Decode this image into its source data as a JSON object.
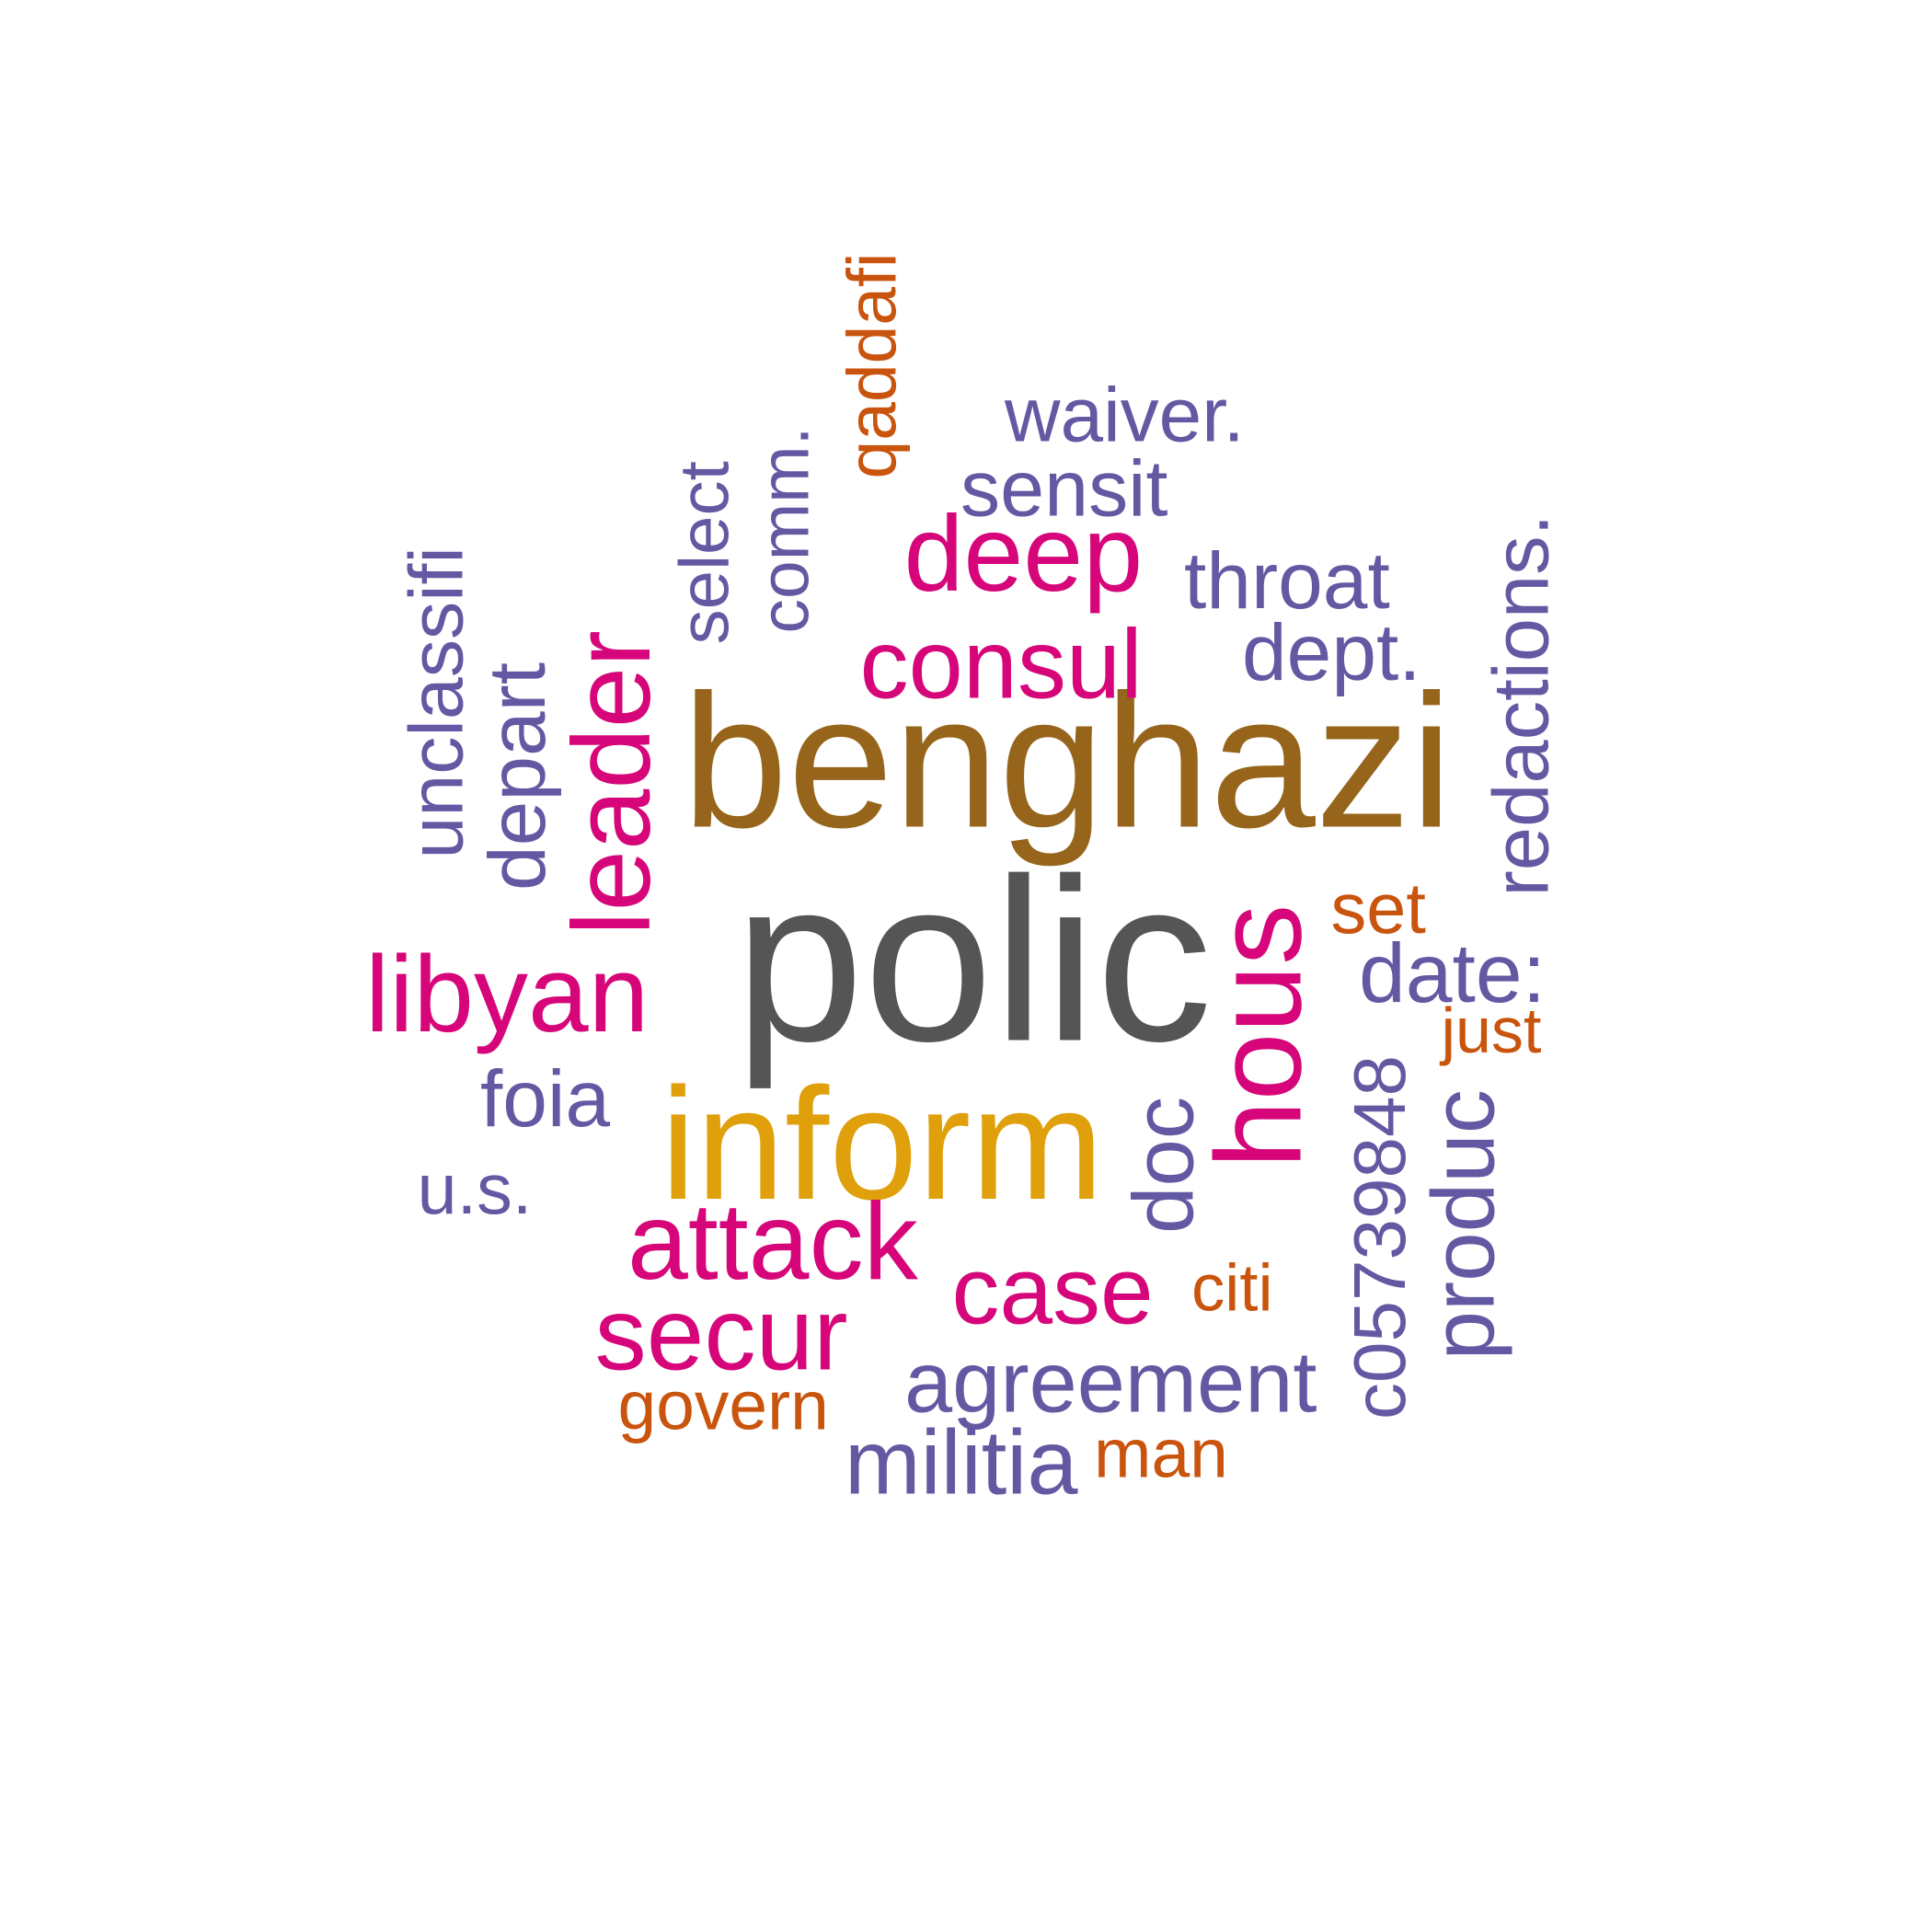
{
  "palette": {
    "brown": "#96651B",
    "gray": "#555555",
    "gold": "#E0A00C",
    "magenta": "#D6067A",
    "purple": "#6359A3",
    "orange": "#C9540D"
  },
  "words": [
    {
      "text": "benghazi",
      "color": "#96651B",
      "vertical": false
    },
    {
      "text": "polic",
      "color": "#555555",
      "vertical": false
    },
    {
      "text": "inform",
      "color": "#E0A00C",
      "vertical": false
    },
    {
      "text": "hous",
      "color": "#D6067A",
      "vertical": true
    },
    {
      "text": "libyan",
      "color": "#D6067A",
      "vertical": false
    },
    {
      "text": "leader",
      "color": "#D6067A",
      "vertical": true
    },
    {
      "text": "consul",
      "color": "#D6067A",
      "vertical": false
    },
    {
      "text": "deep",
      "color": "#D6067A",
      "vertical": false
    },
    {
      "text": "attack",
      "color": "#D6067A",
      "vertical": false
    },
    {
      "text": "case",
      "color": "#D6067A",
      "vertical": false
    },
    {
      "text": "secur",
      "color": "#D6067A",
      "vertical": false
    },
    {
      "text": "unclassifi",
      "color": "#6359A3",
      "vertical": true
    },
    {
      "text": "depart",
      "color": "#6359A3",
      "vertical": true
    },
    {
      "text": "select",
      "color": "#6359A3",
      "vertical": true
    },
    {
      "text": "comm.",
      "color": "#6359A3",
      "vertical": true
    },
    {
      "text": "waiver.",
      "color": "#6359A3",
      "vertical": false
    },
    {
      "text": "sensit",
      "color": "#6359A3",
      "vertical": false
    },
    {
      "text": "throat",
      "color": "#6359A3",
      "vertical": false
    },
    {
      "text": "dept.",
      "color": "#6359A3",
      "vertical": false
    },
    {
      "text": "redactions.",
      "color": "#6359A3",
      "vertical": true
    },
    {
      "text": "date:",
      "color": "#6359A3",
      "vertical": false
    },
    {
      "text": "foia",
      "color": "#6359A3",
      "vertical": false
    },
    {
      "text": "u.s.",
      "color": "#6359A3",
      "vertical": false
    },
    {
      "text": "doc",
      "color": "#6359A3",
      "vertical": true
    },
    {
      "text": "c05739848",
      "color": "#6359A3",
      "vertical": true
    },
    {
      "text": "produc",
      "color": "#6359A3",
      "vertical": true
    },
    {
      "text": "agreement",
      "color": "#6359A3",
      "vertical": false
    },
    {
      "text": "militia",
      "color": "#6359A3",
      "vertical": false
    },
    {
      "text": "qaddafi",
      "color": "#C9540D",
      "vertical": true
    },
    {
      "text": "set",
      "color": "#C9540D",
      "vertical": false
    },
    {
      "text": "just",
      "color": "#C9540D",
      "vertical": false
    },
    {
      "text": "citi",
      "color": "#C9540D",
      "vertical": false
    },
    {
      "text": "govern",
      "color": "#C9540D",
      "vertical": false
    },
    {
      "text": "man",
      "color": "#C9540D",
      "vertical": false
    }
  ]
}
